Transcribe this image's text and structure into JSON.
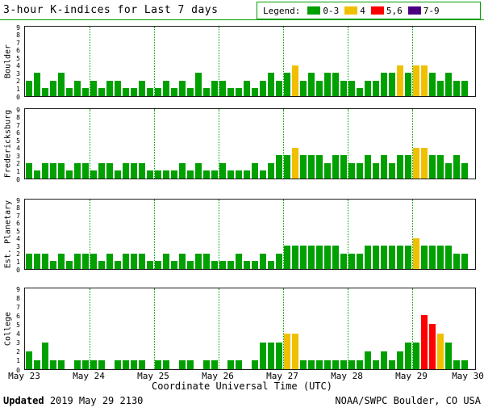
{
  "title": "3-hour K-indices for Last 7 days",
  "footer": {
    "updated_label": "Updated",
    "updated_value": "2019 May 29 2130",
    "credit": "NOAA/SWPC Boulder, CO USA"
  },
  "colors": {
    "green": "#00a000",
    "yellow": "#f0c000",
    "red": "#ff0000",
    "purple": "#4b0082",
    "grid": "#00a000",
    "axis": "#1a1a1a"
  },
  "chart_data": {
    "type": "bar",
    "title": "3-hour K-indices for Last 7 days",
    "xlabel": "Coordinate Universal Time (UTC)",
    "x_tick_labels": [
      "May 23",
      "May 24",
      "May 25",
      "May 26",
      "May 27",
      "May 28",
      "May 29",
      "May 30"
    ],
    "ylim": [
      0,
      9
    ],
    "y_ticks": [
      0,
      1,
      2,
      3,
      4,
      5,
      6,
      7,
      8,
      9
    ],
    "days": 7,
    "bars_per_day": 8,
    "bar_interval_hours": 3,
    "grid": "vertical-dotted-daily",
    "legend": {
      "label": "Legend:",
      "position": "top-right",
      "entries": [
        {
          "label": "0-3",
          "color": "#00a000"
        },
        {
          "label": "4",
          "color": "#f0c000"
        },
        {
          "label": "5,6",
          "color": "#ff0000"
        },
        {
          "label": "7-9",
          "color": "#4b0082"
        }
      ]
    },
    "series": [
      {
        "name": "Boulder",
        "values": [
          2,
          3,
          1,
          2,
          3,
          1,
          2,
          1,
          2,
          1,
          2,
          2,
          1,
          1,
          2,
          1,
          1,
          2,
          1,
          2,
          1,
          3,
          1,
          2,
          2,
          1,
          1,
          2,
          1,
          2,
          3,
          2,
          3,
          4,
          2,
          3,
          2,
          3,
          3,
          2,
          2,
          1,
          2,
          2,
          3,
          3,
          4,
          3,
          4,
          4,
          3,
          2,
          3,
          2,
          2
        ]
      },
      {
        "name": "Fredericksburg",
        "values": [
          2,
          1,
          2,
          2,
          2,
          1,
          2,
          2,
          1,
          2,
          2,
          1,
          2,
          2,
          2,
          1,
          1,
          1,
          1,
          2,
          1,
          2,
          1,
          1,
          2,
          1,
          1,
          1,
          2,
          1,
          2,
          3,
          3,
          4,
          3,
          3,
          3,
          2,
          3,
          3,
          2,
          2,
          3,
          2,
          3,
          2,
          3,
          3,
          4,
          4,
          3,
          3,
          2,
          3,
          2
        ]
      },
      {
        "name": "Est. Planetary",
        "values": [
          2,
          2,
          2,
          1,
          2,
          1,
          2,
          2,
          2,
          1,
          2,
          1,
          2,
          2,
          2,
          1,
          1,
          2,
          1,
          2,
          1,
          2,
          2,
          1,
          1,
          1,
          2,
          1,
          1,
          2,
          1,
          2,
          3,
          3,
          3,
          3,
          3,
          3,
          3,
          2,
          2,
          2,
          3,
          3,
          3,
          3,
          3,
          3,
          4,
          3,
          3,
          3,
          3,
          2,
          2
        ]
      },
      {
        "name": "College",
        "values": [
          2,
          1,
          3,
          1,
          1,
          0,
          1,
          1,
          1,
          1,
          0,
          1,
          1,
          1,
          1,
          0,
          1,
          1,
          0,
          1,
          1,
          0,
          1,
          1,
          0,
          1,
          1,
          0,
          1,
          3,
          3,
          3,
          4,
          4,
          1,
          1,
          1,
          1,
          1,
          1,
          1,
          1,
          2,
          1,
          2,
          1,
          2,
          3,
          3,
          6,
          5,
          4,
          3,
          1,
          1
        ]
      }
    ]
  }
}
